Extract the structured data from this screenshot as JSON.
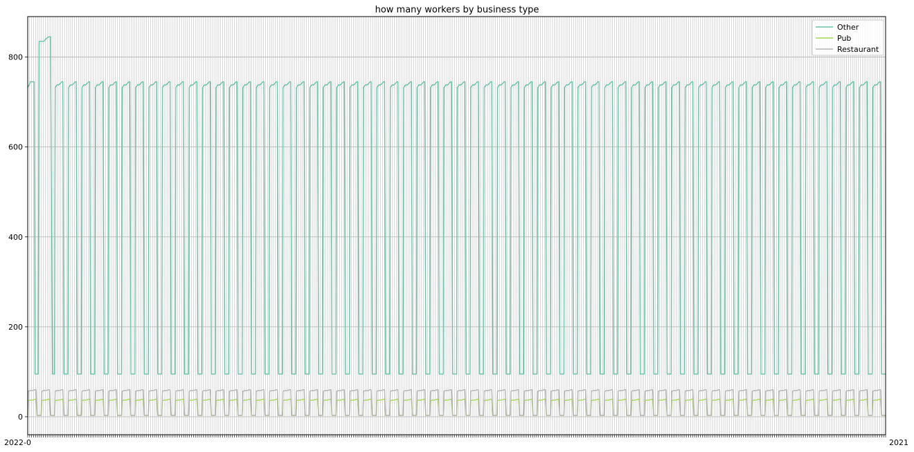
{
  "chart_data": {
    "type": "line",
    "title": "how many workers by business type",
    "xlabel": "",
    "ylabel": "",
    "ylim": [
      -40,
      890
    ],
    "y_ticks": [
      0,
      200,
      400,
      600,
      800
    ],
    "grid": true,
    "legend_position": "top-right",
    "x_tick_label_overlap_start": "2022-0",
    "x_tick_label_overlap_end": "2021",
    "cycle_count": 64,
    "series": [
      {
        "name": "Other",
        "color": "#66c2a5",
        "low_value": 95,
        "high_values": [
          732,
          738,
          742,
          745
        ],
        "early_peak_values": [
          835,
          840,
          845
        ]
      },
      {
        "name": "Pub",
        "color": "#a6d854",
        "low_value": 3,
        "high_values": [
          36,
          37,
          38,
          39
        ]
      },
      {
        "name": "Restaurant",
        "color": "#b3b3b3",
        "low_value": 3,
        "high_values": [
          57,
          58,
          59,
          60
        ]
      }
    ]
  }
}
